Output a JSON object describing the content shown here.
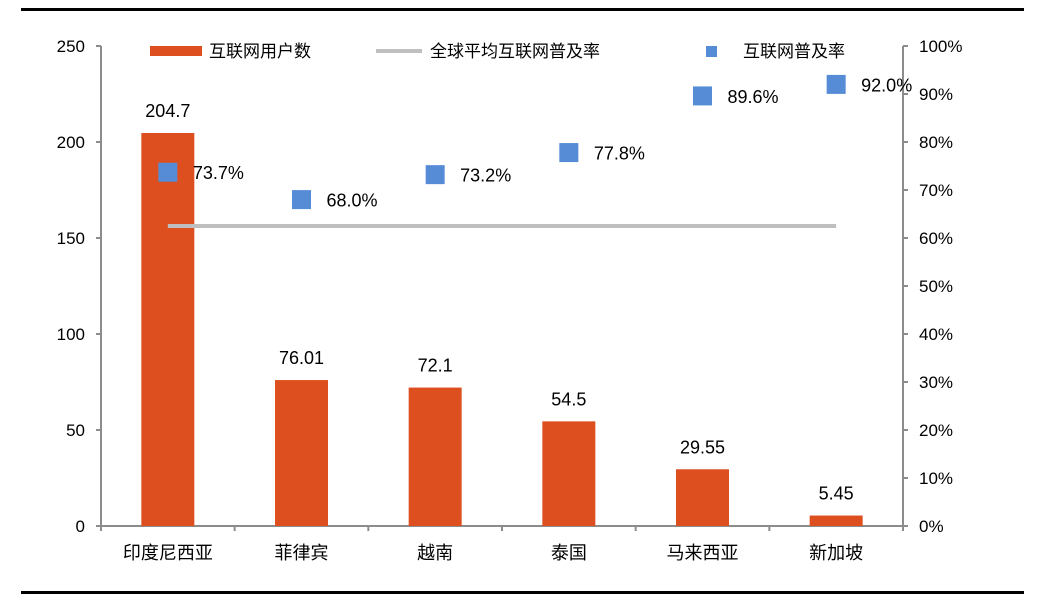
{
  "chart_data": {
    "type": "bar",
    "title": "",
    "categories": [
      "印度尼西亚",
      "菲律宾",
      "越南",
      "泰国",
      "马来西亚",
      "新加坡"
    ],
    "series": [
      {
        "name": "互联网用户数",
        "type": "bar",
        "axis": "left",
        "color": "#DD4F1F",
        "values": [
          204.7,
          76.01,
          72.1,
          54.5,
          29.55,
          5.45
        ],
        "labels": [
          "204.7",
          "76.01",
          "72.1",
          "54.5",
          "29.55",
          "5.45"
        ]
      },
      {
        "name": "全球平均互联网普及率",
        "type": "line",
        "axis": "right",
        "color": "#BFBFBF",
        "values": [
          62.5,
          62.5,
          62.5,
          62.5,
          62.5,
          62.5
        ]
      },
      {
        "name": "互联网普及率",
        "type": "scatter",
        "axis": "right",
        "color": "#568CD6",
        "values": [
          73.7,
          68.0,
          73.2,
          77.8,
          89.6,
          92.0
        ],
        "labels": [
          "73.7%",
          "68.0%",
          "73.2%",
          "77.8%",
          "89.6%",
          "92.0%"
        ]
      }
    ],
    "left_axis": {
      "min": 0,
      "max": 250,
      "ticks": [
        "0",
        "50",
        "100",
        "150",
        "200",
        "250"
      ]
    },
    "right_axis": {
      "min": 0,
      "max": 100,
      "ticks": [
        "0%",
        "10%",
        "20%",
        "30%",
        "40%",
        "50%",
        "60%",
        "70%",
        "80%",
        "90%",
        "100%"
      ]
    },
    "xlabel": "",
    "ylabel": "",
    "ylabel_right": "",
    "grid": false,
    "legend_position": "top"
  },
  "legend": {
    "items": [
      {
        "label": "互联网用户数",
        "kind": "bar"
      },
      {
        "label": "全球平均互联网普及率",
        "kind": "line"
      },
      {
        "label": "互联网普及率",
        "kind": "marker"
      }
    ]
  }
}
